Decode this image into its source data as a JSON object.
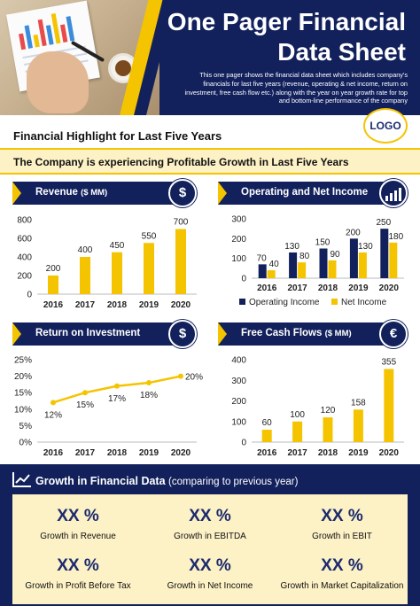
{
  "header": {
    "title_line1": "One Pager Financial",
    "title_line2": "Data Sheet",
    "description": "This one pager shows the financial data sheet which includes company's financials for last five years (revenue, operating & net income, return on investment, free cash flow etc.) along with the year on year growth rate for top and bottom-line performance of the company",
    "logo_text": "LOGO"
  },
  "section_title": "Financial Highlight  for Last Five Years",
  "banner_text": "The Company is experiencing Profitable Growth in Last Five Years",
  "colors": {
    "navy": "#12215c",
    "yellow": "#f5c400",
    "cream": "#fdf1c6"
  },
  "charts_header": {
    "revenue": {
      "label": "Revenue",
      "unit": "($ MM)",
      "icon": "dollar-circle-icon"
    },
    "operating": {
      "label": "Operating and Net Income",
      "icon": "growth-chart-icon"
    },
    "roi": {
      "label": "Return on Investment",
      "icon": "dollar-cycle-icon"
    },
    "fcf": {
      "label": "Free Cash Flows",
      "unit": "($ MM)",
      "icon": "euro-coin-icon"
    }
  },
  "chart_data": [
    {
      "type": "bar",
      "id": "revenue",
      "categories": [
        "2016",
        "2017",
        "2018",
        "2019",
        "2020"
      ],
      "values": [
        200,
        400,
        450,
        550,
        700
      ],
      "data_labels": [
        "200",
        "400",
        "450",
        "550",
        "700"
      ],
      "ylim": [
        0,
        800
      ],
      "yticks": [
        "0",
        "200",
        "400",
        "600",
        "800"
      ],
      "color": "#f5c400"
    },
    {
      "type": "bar",
      "id": "operating",
      "categories": [
        "2016",
        "2017",
        "2018",
        "2019",
        "2020"
      ],
      "series": [
        {
          "name": "Operating Income",
          "values": [
            70,
            130,
            150,
            200,
            250
          ],
          "labels": [
            "70",
            "130",
            "150",
            "200",
            "250"
          ],
          "color": "#12215c"
        },
        {
          "name": "Net Income",
          "values": [
            40,
            80,
            90,
            130,
            180
          ],
          "labels": [
            "40",
            "80",
            "90",
            "130",
            "180"
          ],
          "color": "#f5c400"
        }
      ],
      "ylim": [
        0,
        300
      ],
      "yticks": [
        "0",
        "100",
        "200",
        "300"
      ],
      "legend": "bottom"
    },
    {
      "type": "line",
      "id": "roi",
      "categories": [
        "2016",
        "2017",
        "2018",
        "2019",
        "2020"
      ],
      "values": [
        12,
        15,
        17,
        18,
        20
      ],
      "data_labels": [
        "12%",
        "15%",
        "17%",
        "18%",
        "20%"
      ],
      "ylim": [
        0,
        25
      ],
      "yticks": [
        "0%",
        "5%",
        "10%",
        "15%",
        "20%",
        "25%"
      ],
      "color": "#f5c400"
    },
    {
      "type": "bar",
      "id": "fcf",
      "categories": [
        "2016",
        "2017",
        "2018",
        "2019",
        "2020"
      ],
      "values": [
        60,
        100,
        120,
        158,
        355
      ],
      "data_labels": [
        "60",
        "100",
        "120",
        "158",
        "355"
      ],
      "ylim": [
        0,
        400
      ],
      "yticks": [
        "0",
        "100",
        "200",
        "300",
        "400"
      ],
      "color": "#f5c400"
    }
  ],
  "growth": {
    "title": "Growth  in Financial Data",
    "subtitle": "(comparing to previous year)",
    "icon": "trend-line-icon",
    "metrics": [
      {
        "value": "XX %",
        "caption": "Growth  in Revenue"
      },
      {
        "value": "XX %",
        "caption": "Growth  in EBITDA"
      },
      {
        "value": "XX %",
        "caption": "Growth  in EBIT"
      },
      {
        "value": "XX %",
        "caption": "Growth  in Profit Before Tax"
      },
      {
        "value": "XX %",
        "caption": "Growth  in Net Income"
      },
      {
        "value": "XX %",
        "caption": "Growth  in Market Capitalization"
      }
    ]
  }
}
